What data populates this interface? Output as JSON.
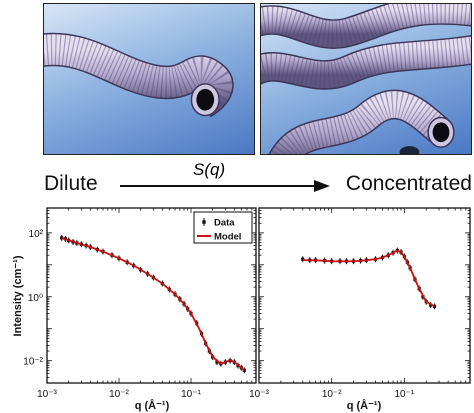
{
  "header": {
    "dilute_label": "Dilute",
    "concentrated_label": "Concentrated",
    "transition_label": "S(q)"
  },
  "colors": {
    "model_line": "#d01010",
    "data_marker": "#111111",
    "tube": "#b9aed2",
    "background_light": "#d7e6f6",
    "background_dark": "#4a78c4"
  },
  "chart_data": [
    {
      "type": "scatter",
      "panel": "dilute",
      "xlabel": "q (Å⁻¹)",
      "ylabel": "Intensity (cm⁻¹)",
      "xscale": "log",
      "yscale": "log",
      "xlim": [
        0.001,
        0.8
      ],
      "ylim": [
        0.002,
        600
      ],
      "x_ticks": [
        "10⁻³",
        "10⁻²",
        "10⁻¹"
      ],
      "y_ticks": [
        "10⁻²",
        "10⁰",
        "10²"
      ],
      "legend": {
        "placement": "top-right",
        "entries": [
          "Data",
          "Model"
        ]
      },
      "series": [
        {
          "name": "Data",
          "x": [
            0.0016,
            0.0018,
            0.002,
            0.0023,
            0.0026,
            0.003,
            0.0035,
            0.004,
            0.005,
            0.006,
            0.008,
            0.01,
            0.013,
            0.016,
            0.02,
            0.025,
            0.03,
            0.04,
            0.05,
            0.06,
            0.07,
            0.08,
            0.09,
            0.1,
            0.12,
            0.14,
            0.16,
            0.18,
            0.2,
            0.23,
            0.26,
            0.3,
            0.35,
            0.4,
            0.45,
            0.5,
            0.55
          ],
          "y": [
            70,
            65,
            58,
            52,
            48,
            44,
            40,
            36,
            30,
            26,
            20,
            16,
            12,
            9.5,
            7,
            5.2,
            4,
            2.6,
            1.7,
            1.2,
            0.85,
            0.6,
            0.42,
            0.3,
            0.15,
            0.07,
            0.035,
            0.02,
            0.013,
            0.009,
            0.008,
            0.009,
            0.01,
            0.009,
            0.007,
            0.006,
            0.005
          ]
        },
        {
          "name": "Model",
          "x": [
            0.0016,
            0.002,
            0.003,
            0.004,
            0.006,
            0.01,
            0.016,
            0.025,
            0.04,
            0.06,
            0.08,
            0.1,
            0.13,
            0.16,
            0.2,
            0.26,
            0.3,
            0.35,
            0.4,
            0.5,
            0.55
          ],
          "y": [
            68,
            58,
            44,
            36,
            26,
            16,
            9.5,
            5.2,
            2.6,
            1.2,
            0.6,
            0.3,
            0.1,
            0.035,
            0.013,
            0.008,
            0.009,
            0.0105,
            0.009,
            0.006,
            0.005
          ]
        }
      ]
    },
    {
      "type": "scatter",
      "panel": "concentrated",
      "xlabel": "q (Å⁻¹)",
      "xscale": "log",
      "yscale": "log",
      "xlim": [
        0.001,
        0.8
      ],
      "ylim": [
        0.002,
        600
      ],
      "x_ticks": [
        "10⁻³",
        "10⁻²",
        "10⁻¹"
      ],
      "series": [
        {
          "name": "Data",
          "x": [
            0.004,
            0.005,
            0.006,
            0.008,
            0.01,
            0.013,
            0.016,
            0.02,
            0.025,
            0.03,
            0.04,
            0.05,
            0.06,
            0.07,
            0.08,
            0.09,
            0.1,
            0.11,
            0.12,
            0.14,
            0.16,
            0.18,
            0.2,
            0.23,
            0.26
          ],
          "y": [
            15,
            14,
            14,
            13.5,
            13,
            13,
            13,
            13,
            13.5,
            14,
            15,
            17,
            20,
            24,
            28,
            25,
            18,
            12,
            8,
            3.5,
            1.8,
            1.0,
            0.7,
            0.55,
            0.5
          ]
        },
        {
          "name": "Model",
          "x": [
            0.004,
            0.006,
            0.01,
            0.016,
            0.025,
            0.04,
            0.05,
            0.06,
            0.07,
            0.08,
            0.09,
            0.1,
            0.12,
            0.14,
            0.16,
            0.2,
            0.26
          ],
          "y": [
            14,
            13.8,
            13,
            12.8,
            13.3,
            15,
            17,
            20,
            24,
            28,
            25,
            18,
            8,
            3.5,
            1.8,
            0.7,
            0.5
          ]
        }
      ]
    }
  ]
}
